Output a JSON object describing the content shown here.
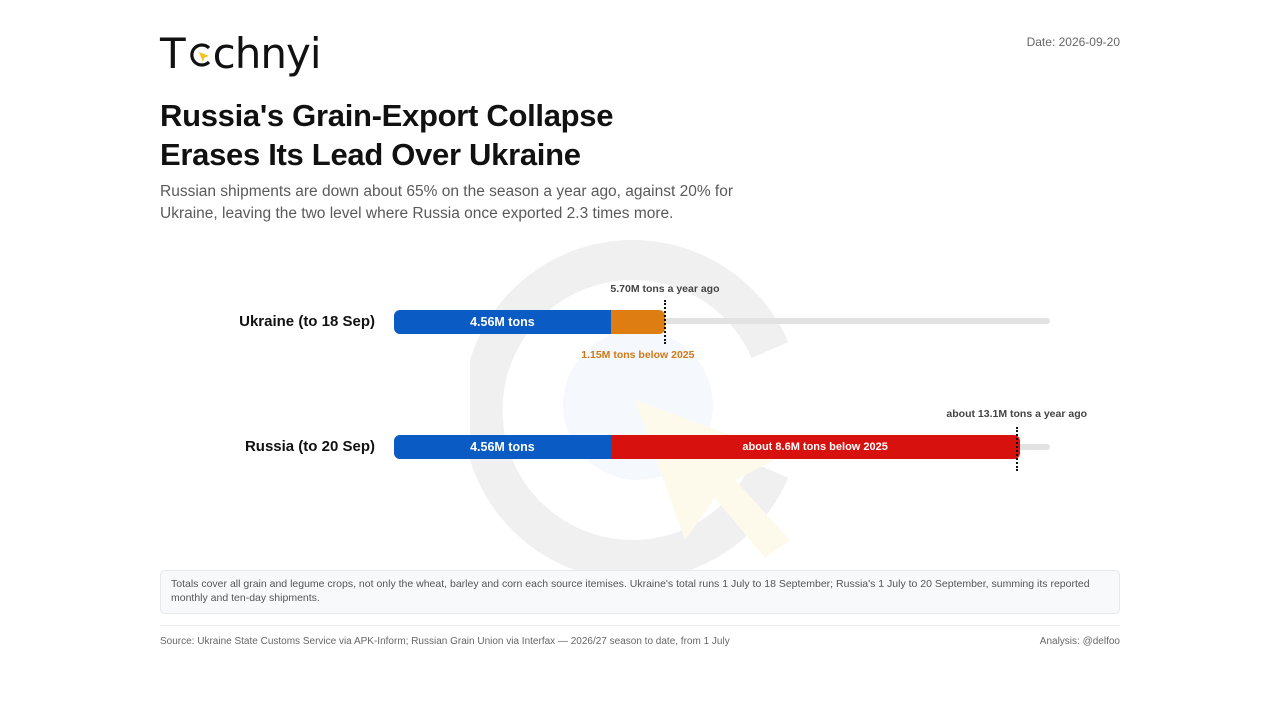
{
  "brand": {
    "logo_text": "Technyi"
  },
  "date": "Date: 2026-09-20",
  "title": "Russia's Grain-Export Collapse Erases Its Lead Over Ukraine",
  "subtitle": "Russian shipments are down about 65% on the season a year ago, against 20% for Ukraine, leaving the two level where Russia once exported 2.3 times more.",
  "chart_data": {
    "type": "bar",
    "orientation": "horizontal",
    "stacked": true,
    "unit": "million tons",
    "xlim": [
      0,
      13.8
    ],
    "categories": [
      "Ukraine (to 18 Sep)",
      "Russia (to 20 Sep)"
    ],
    "series": [
      {
        "values": [
          4.56,
          4.56
        ],
        "color": "#0b5bc4",
        "labels": [
          "4.56M tons",
          "4.56M tons"
        ]
      },
      {
        "values": [
          1.15,
          8.6
        ],
        "colors": [
          "#de7d12",
          "#d7120e"
        ],
        "labels": [
          "1.15M tons below 2025",
          "about 8.6M tons below 2025"
        ]
      }
    ],
    "year_ago_markers": [
      {
        "value": 5.7,
        "label": "5.70M tons a year ago"
      },
      {
        "value": 13.1,
        "label": "about 13.1M tons a year ago"
      }
    ]
  },
  "note": "Totals cover all grain and legume crops, not only the wheat, barley and corn each source itemises. Ukraine's total runs 1 July to 18 September; Russia's 1 July to 20 September, summing its reported monthly and ten-day shipments.",
  "source": "Source: Ukraine State Customs Service via APK-Inform; Russian Grain Union via Interfax — 2026/27 season to date, from 1 July",
  "analysis": "Analysis: @delfoo",
  "colors": {
    "ukraine_current": "#0b5bc4",
    "ukraine_gap": "#de7d12",
    "russia_gap": "#d7120e",
    "track": "#e2e2e2"
  }
}
